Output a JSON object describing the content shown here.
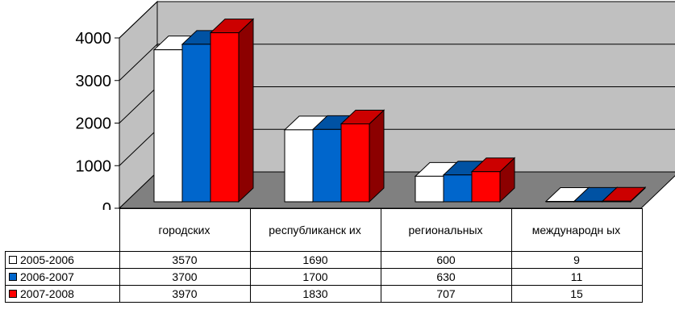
{
  "chart_data": {
    "type": "bar",
    "style": "3d-clustered-column",
    "categories": [
      "городских",
      "республиканских",
      "региональных",
      "международных"
    ],
    "category_labels_shown": [
      "городских",
      "республиканск их",
      "региональных",
      "международн ых"
    ],
    "y_ticks": [
      "0",
      "1000",
      "2000",
      "3000",
      "4000"
    ],
    "ylim": [
      0,
      4000
    ],
    "grid": true,
    "legend": "data-table",
    "series": [
      {
        "name": "2005-2006",
        "color": "#ffffff",
        "values": [
          3570,
          1690,
          600,
          9
        ],
        "labels": [
          "3570",
          "1690",
          "600",
          "9"
        ]
      },
      {
        "name": "2006-2007",
        "color": "#0066cc",
        "values": [
          3700,
          1700,
          630,
          11
        ],
        "labels": [
          "3700",
          "1700",
          "630",
          "11"
        ]
      },
      {
        "name": "2007-2008",
        "color": "#ff0000",
        "values": [
          3970,
          1830,
          707,
          15
        ],
        "labels": [
          "3970",
          "1830",
          "707",
          "15"
        ]
      }
    ],
    "colors": {
      "wall": "#c0c0c0",
      "floor": "#808080",
      "gridline": "#000000"
    }
  }
}
